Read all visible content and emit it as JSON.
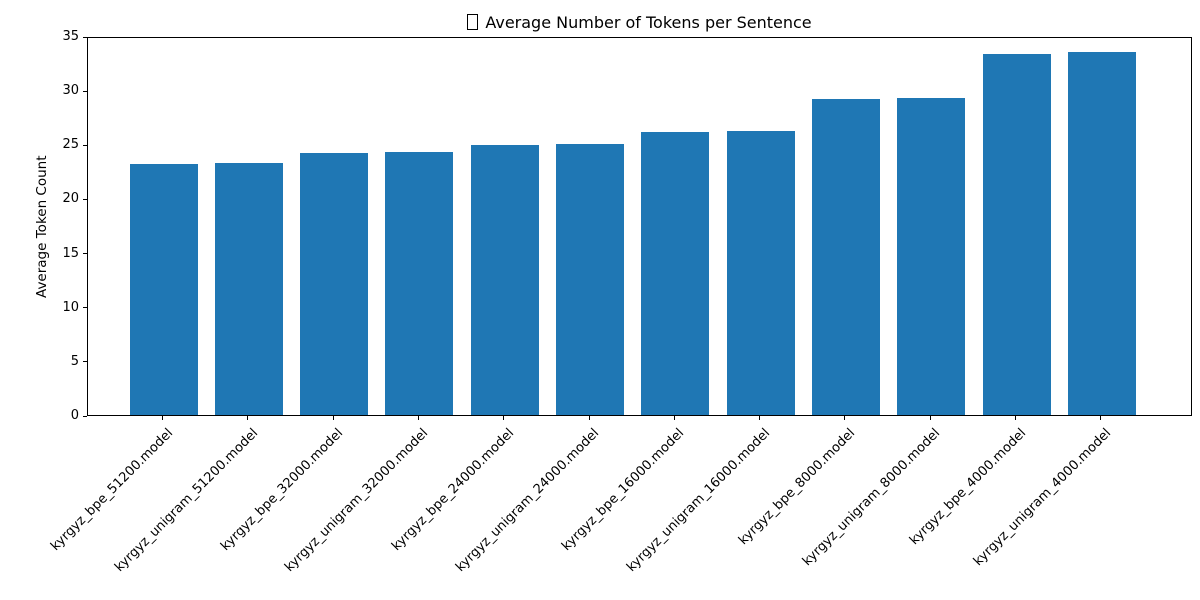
{
  "chart_data": {
    "type": "bar",
    "title": "Average Number of Tokens per Sentence",
    "title_prefix_glyph": "missing-glyph-box",
    "xlabel": "",
    "ylabel": "Average Token Count",
    "categories": [
      "kyrgyz_bpe_51200.model",
      "kyrgyz_unigram_51200.model",
      "kyrgyz_bpe_32000.model",
      "kyrgyz_unigram_32000.model",
      "kyrgyz_bpe_24000.model",
      "kyrgyz_unigram_24000.model",
      "kyrgyz_bpe_16000.model",
      "kyrgyz_unigram_16000.model",
      "kyrgyz_bpe_8000.model",
      "kyrgyz_unigram_8000.model",
      "kyrgyz_bpe_4000.model",
      "kyrgyz_unigram_4000.model"
    ],
    "values": [
      23.2,
      23.3,
      24.2,
      24.3,
      24.9,
      25.0,
      26.1,
      26.2,
      29.2,
      29.3,
      33.3,
      33.5
    ],
    "ylim": [
      0,
      35
    ],
    "yticks": [
      0,
      5,
      10,
      15,
      20,
      25,
      30,
      35
    ],
    "bar_color": "#1f77b4",
    "grid": false,
    "x_tick_label_rotation": 45,
    "legend_position": "none"
  }
}
